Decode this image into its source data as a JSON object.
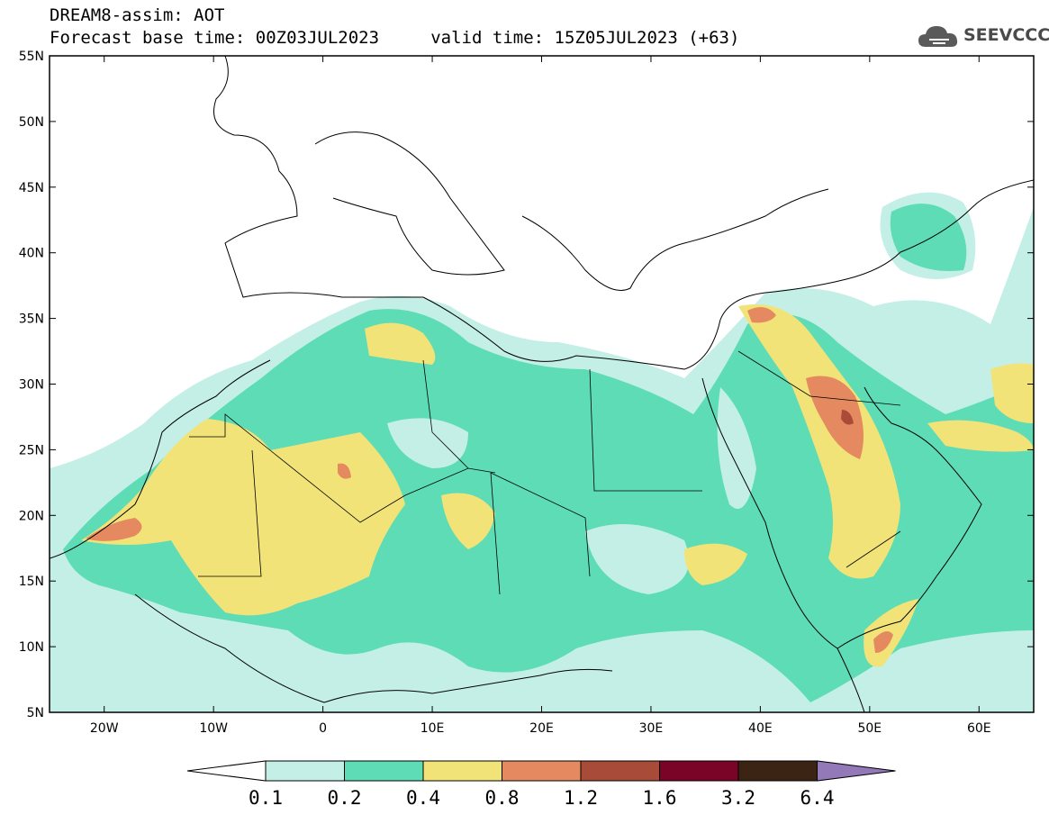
{
  "header": {
    "title": "DREAM8-assim: AOT",
    "subtitle": "Forecast base time: 00Z03JUL2023     valid time: 15Z05JUL2023 (+63)"
  },
  "logo": {
    "text": "SEEVCCC",
    "icon": "cloud-icon"
  },
  "map": {
    "projection": "lat-lon",
    "lon_range": [
      -25,
      65
    ],
    "lat_range": [
      5,
      55
    ],
    "x_tick_labels": [
      "20W",
      "10W",
      "0",
      "10E",
      "20E",
      "30E",
      "40E",
      "50E",
      "60E"
    ],
    "y_tick_labels": [
      "55N",
      "50N",
      "45N",
      "40N",
      "35N",
      "30N",
      "25N",
      "20N",
      "15N",
      "10N",
      "5N"
    ]
  },
  "legend": {
    "labels": [
      "0.1",
      "0.2",
      "0.4",
      "0.8",
      "1.2",
      "1.6",
      "3.2",
      "6.4"
    ],
    "colors": [
      "#ffffff",
      "#c4efe6",
      "#5ddcb6",
      "#f2e379",
      "#e58a60",
      "#a84b38",
      "#7a0428",
      "#3c2414",
      "#9479b8"
    ]
  }
}
